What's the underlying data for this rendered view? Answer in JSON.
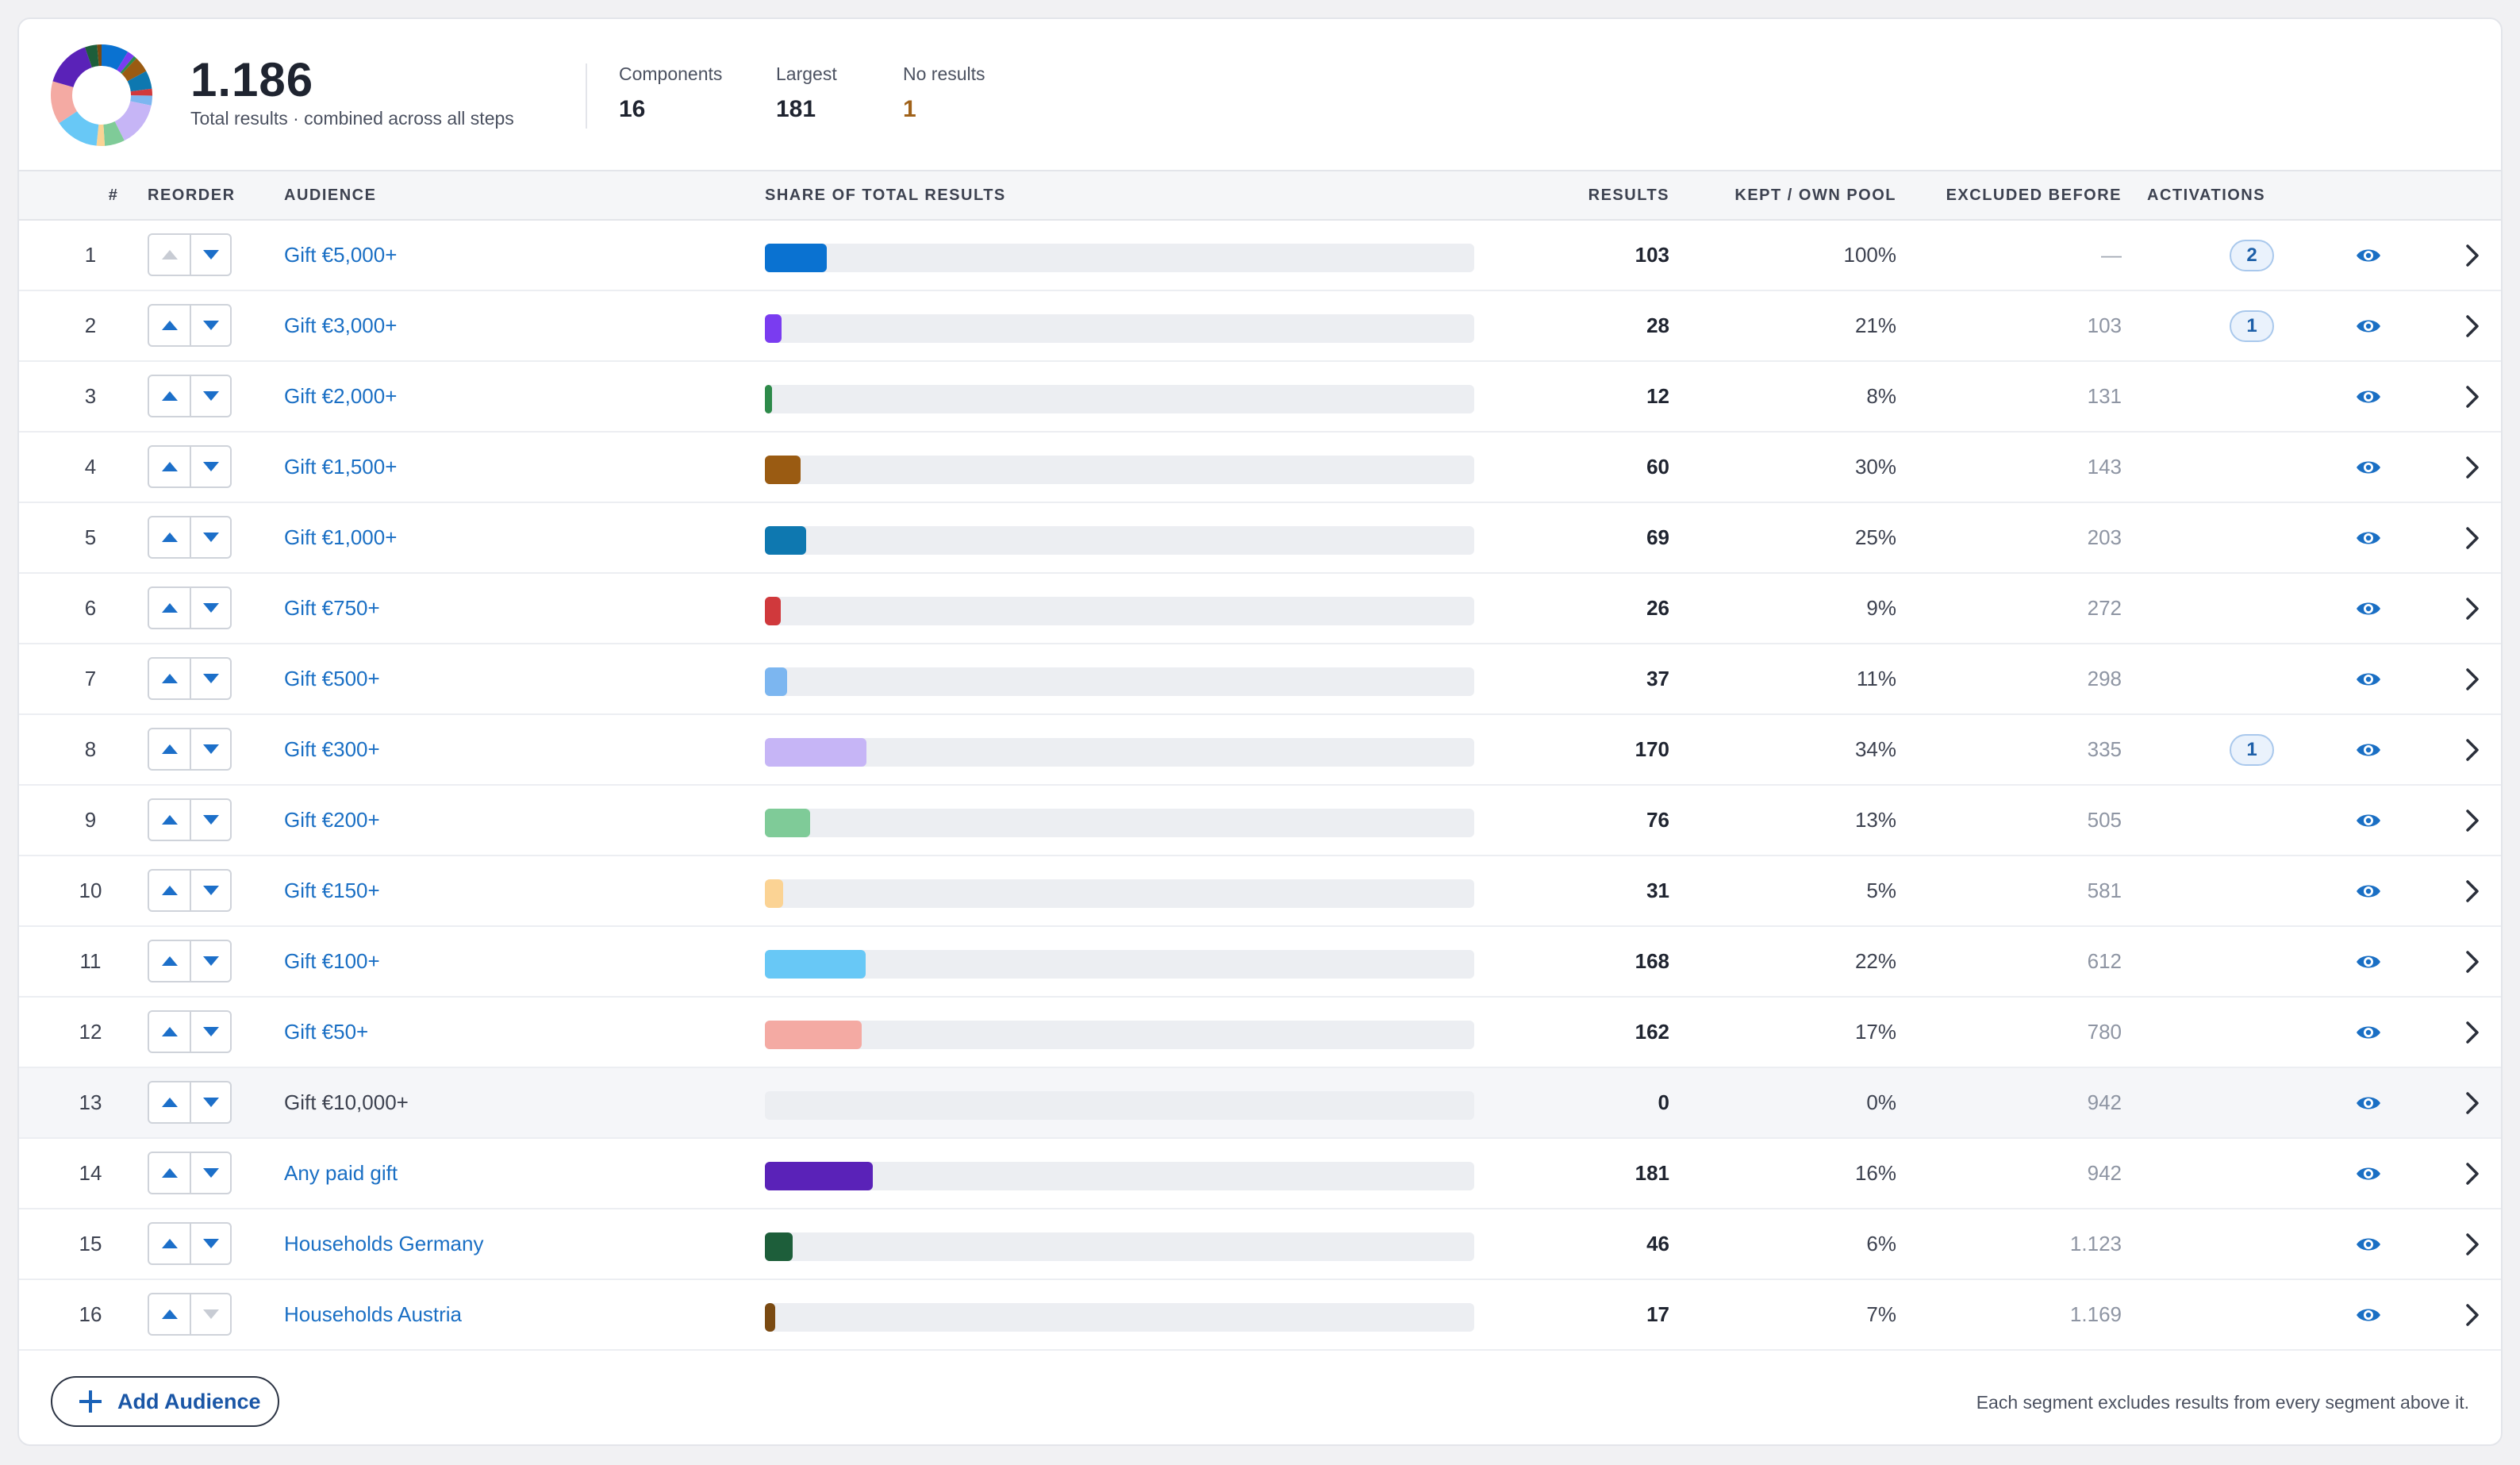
{
  "summary": {
    "total": "1.186",
    "total_caption": "Total results · combined across all steps",
    "stats": [
      {
        "label": "Components",
        "value": "16",
        "tone": "normal"
      },
      {
        "label": "Largest",
        "value": "181",
        "tone": "normal"
      },
      {
        "label": "No results",
        "value": "1",
        "tone": "warn"
      }
    ]
  },
  "columns": {
    "num": "#",
    "reorder": "REORDER",
    "audience": "AUDIENCE",
    "share": "SHARE OF TOTAL RESULTS",
    "results": "RESULTS",
    "kept": "KEPT / OWN POOL",
    "excluded": "EXCLUDED BEFORE",
    "activations": "ACTIVATIONS"
  },
  "rows": [
    {
      "num": "1",
      "audience": "Gift €5,000+",
      "results": 103,
      "kept": "100%",
      "excluded": "—",
      "activations": "2",
      "color": "#0a72d1",
      "link": true,
      "up_disabled": true,
      "down_disabled": false
    },
    {
      "num": "2",
      "audience": "Gift €3,000+",
      "results": 28,
      "kept": "21%",
      "excluded": "103",
      "activations": "1",
      "color": "#7a3cf0",
      "link": true,
      "up_disabled": false,
      "down_disabled": false
    },
    {
      "num": "3",
      "audience": "Gift €2,000+",
      "results": 12,
      "kept": "8%",
      "excluded": "131",
      "activations": "",
      "color": "#2e8a4a",
      "link": true,
      "up_disabled": false,
      "down_disabled": false
    },
    {
      "num": "4",
      "audience": "Gift €1,500+",
      "results": 60,
      "kept": "30%",
      "excluded": "143",
      "activations": "",
      "color": "#9a5b12",
      "link": true,
      "up_disabled": false,
      "down_disabled": false
    },
    {
      "num": "5",
      "audience": "Gift €1,000+",
      "results": 69,
      "kept": "25%",
      "excluded": "203",
      "activations": "",
      "color": "#0e78b0",
      "link": true,
      "up_disabled": false,
      "down_disabled": false
    },
    {
      "num": "6",
      "audience": "Gift €750+",
      "results": 26,
      "kept": "9%",
      "excluded": "272",
      "activations": "",
      "color": "#d0393c",
      "link": true,
      "up_disabled": false,
      "down_disabled": false
    },
    {
      "num": "7",
      "audience": "Gift €500+",
      "results": 37,
      "kept": "11%",
      "excluded": "298",
      "activations": "",
      "color": "#7cb6f0",
      "link": true,
      "up_disabled": false,
      "down_disabled": false
    },
    {
      "num": "8",
      "audience": "Gift €300+",
      "results": 170,
      "kept": "34%",
      "excluded": "335",
      "activations": "1",
      "color": "#c6b5f6",
      "link": true,
      "up_disabled": false,
      "down_disabled": false
    },
    {
      "num": "9",
      "audience": "Gift €200+",
      "results": 76,
      "kept": "13%",
      "excluded": "505",
      "activations": "",
      "color": "#7fcb98",
      "link": true,
      "up_disabled": false,
      "down_disabled": false
    },
    {
      "num": "10",
      "audience": "Gift €150+",
      "results": 31,
      "kept": "5%",
      "excluded": "581",
      "activations": "",
      "color": "#fbd394",
      "link": true,
      "up_disabled": false,
      "down_disabled": false
    },
    {
      "num": "11",
      "audience": "Gift €100+",
      "results": 168,
      "kept": "22%",
      "excluded": "612",
      "activations": "",
      "color": "#68c8f6",
      "link": true,
      "up_disabled": false,
      "down_disabled": false
    },
    {
      "num": "12",
      "audience": "Gift €50+",
      "results": 162,
      "kept": "17%",
      "excluded": "780",
      "activations": "",
      "color": "#f4aaa3",
      "link": true,
      "up_disabled": false,
      "down_disabled": false
    },
    {
      "num": "13",
      "audience": "Gift €10,000+",
      "results": 0,
      "kept": "0%",
      "excluded": "942",
      "activations": "",
      "color": "#cfd3da",
      "link": false,
      "up_disabled": false,
      "down_disabled": false
    },
    {
      "num": "14",
      "audience": "Any paid gift",
      "results": 181,
      "kept": "16%",
      "excluded": "942",
      "activations": "",
      "color": "#5a22b8",
      "link": true,
      "up_disabled": false,
      "down_disabled": false
    },
    {
      "num": "15",
      "audience": "Households Germany",
      "results": 46,
      "kept": "6%",
      "excluded": "1.123",
      "activations": "",
      "color": "#1d5e3a",
      "link": true,
      "up_disabled": false,
      "down_disabled": false
    },
    {
      "num": "16",
      "audience": "Households Austria",
      "results": 17,
      "kept": "7%",
      "excluded": "1.169",
      "activations": "",
      "color": "#7a4a12",
      "link": true,
      "up_disabled": false,
      "down_disabled": true
    }
  ],
  "share_total": 1186,
  "footer": {
    "add_label": "Add Audience",
    "note": "Each segment excludes results from every segment above it."
  }
}
